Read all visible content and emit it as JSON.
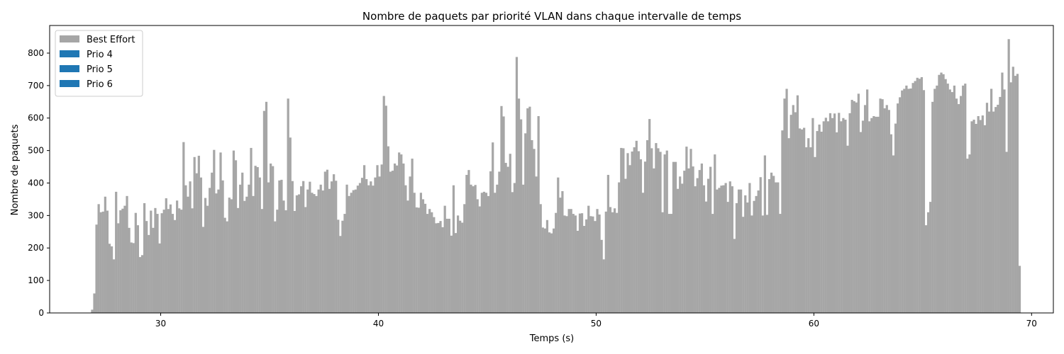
{
  "chart_data": {
    "type": "bar",
    "title": "Nombre de paquets par priorité VLAN dans chaque intervalle de temps",
    "xlabel": "Temps (s)",
    "ylabel": "Nombre de paquets",
    "xlim": [
      24.9,
      71.0
    ],
    "ylim": [
      0,
      885
    ],
    "xticks": [
      30,
      40,
      50,
      60,
      70
    ],
    "yticks": [
      0,
      100,
      200,
      300,
      400,
      500,
      600,
      700,
      800
    ],
    "grid": false,
    "legend_position": "top-left",
    "bin_width": 0.1,
    "x_start": 26.8,
    "series": [
      {
        "name": "Best Effort",
        "color": "#a6a6a6",
        "values": [
          10,
          60,
          272,
          335,
          310,
          312,
          358,
          315,
          213,
          205,
          165,
          373,
          276,
          316,
          321,
          330,
          360,
          262,
          217,
          215,
          308,
          270,
          172,
          178,
          338,
          283,
          240,
          315,
          262,
          323,
          305,
          214,
          307,
          318,
          353,
          320,
          334,
          305,
          286,
          346,
          322,
          318,
          526,
          393,
          358,
          405,
          322,
          480,
          430,
          484,
          417,
          265,
          354,
          330,
          385,
          432,
          502,
          368,
          380,
          494,
          408,
          293,
          282,
          355,
          350,
          500,
          470,
          323,
          395,
          432,
          345,
          358,
          395,
          508,
          360,
          453,
          449,
          417,
          320,
          622,
          650,
          402,
          460,
          452,
          282,
          318,
          408,
          410,
          346,
          316,
          660,
          540,
          406,
          314,
          362,
          365,
          390,
          406,
          326,
          380,
          404,
          370,
          366,
          360,
          380,
          395,
          377,
          435,
          441,
          382,
          405,
          427,
          407,
          287,
          237,
          284,
          305,
          395,
          360,
          370,
          378,
          380,
          392,
          400,
          416,
          455,
          412,
          393,
          405,
          392,
          417,
          455,
          420,
          457,
          668,
          638,
          513,
          435,
          438,
          460,
          454,
          494,
          488,
          460,
          393,
          346,
          420,
          475,
          370,
          325,
          324,
          370,
          350,
          336,
          305,
          320,
          310,
          295,
          276,
          277,
          283,
          264,
          330,
          290,
          290,
          238,
          393,
          246,
          300,
          284,
          278,
          335,
          425,
          440,
          395,
          390,
          394,
          350,
          328,
          370,
          373,
          370,
          360,
          436,
          525,
          370,
          395,
          435,
          637,
          605,
          462,
          450,
          490,
          372,
          400,
          788,
          660,
          596,
          395,
          553,
          630,
          635,
          532,
          505,
          420,
          606,
          335,
          263,
          260,
          286,
          248,
          245,
          260,
          308,
          417,
          355,
          375,
          300,
          298,
          320,
          320,
          305,
          300,
          253,
          306,
          307,
          268,
          288,
          330,
          298,
          297,
          283,
          320,
          303,
          225,
          165,
          312,
          425,
          326,
          310,
          322,
          308,
          402,
          508,
          507,
          413,
          492,
          455,
          497,
          510,
          530,
          498,
          473,
          370,
          466,
          532,
          597,
          507,
          445,
          523,
          507,
          496,
          310,
          488,
          500,
          305,
          305,
          465,
          465,
          382,
          420,
          398,
          438,
          512,
          445,
          505,
          451,
          390,
          415,
          440,
          460,
          393,
          343,
          413,
          450,
          305,
          488,
          380,
          385,
          392,
          393,
          400,
          342,
          405,
          390,
          228,
          338,
          380,
          380,
          296,
          362,
          340,
          400,
          300,
          345,
          360,
          377,
          418,
          300,
          485,
          302,
          412,
          432,
          422,
          402,
          402,
          305,
          562,
          660,
          690,
          538,
          610,
          640,
          618,
          670,
          568,
          565,
          570,
          510,
          538,
          510,
          600,
          480,
          560,
          580,
          558,
          590,
          601,
          590,
          615,
          600,
          614,
          556,
          616,
          590,
          600,
          595,
          515,
          615,
          656,
          652,
          648,
          675,
          557,
          592,
          640,
          688,
          590,
          600,
          606,
          604,
          604,
          660,
          658,
          630,
          640,
          625,
          550,
          485,
          583,
          645,
          664,
          685,
          690,
          700,
          690,
          691,
          708,
          714,
          724,
          721,
          726,
          686,
          270,
          310,
          342,
          650,
          690,
          700,
          733,
          740,
          735,
          720,
          706,
          688,
          680,
          700,
          660,
          643,
          668,
          700,
          706,
          475,
          488,
          590,
          595,
          582,
          606,
          594,
          608,
          578,
          647,
          620,
          690,
          620,
          634,
          641,
          665,
          740,
          688,
          496,
          843,
          710,
          758,
          730,
          736,
          145
        ]
      },
      {
        "name": "Prio 4",
        "color": "#1f77b4",
        "values": []
      },
      {
        "name": "Prio 5",
        "color": "#1f77b4",
        "values": []
      },
      {
        "name": "Prio 6",
        "color": "#1f77b4",
        "values": []
      }
    ]
  }
}
